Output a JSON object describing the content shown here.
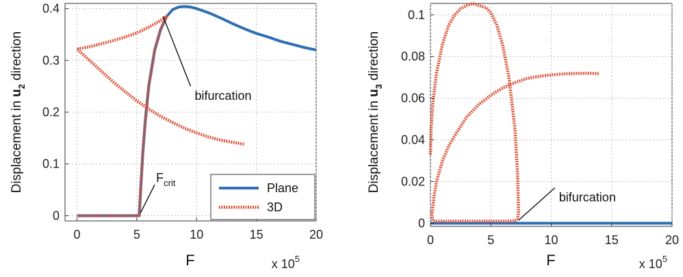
{
  "chart_data": [
    {
      "type": "line",
      "xlabel": "F",
      "x_multiplier": "x 10",
      "x_multiplier_exp": "5",
      "ylabel": "Displacement in  ",
      "ylabel_var": "u",
      "ylabel_sub": "2",
      "ylabel_tail": " direction",
      "xlim": [
        -1,
        20
      ],
      "ylim": [
        -0.01,
        0.41
      ],
      "xticks": [
        0,
        5,
        10,
        15,
        20
      ],
      "yticks": [
        0,
        0.1,
        0.2,
        0.3,
        0.4
      ],
      "ytick_labels": [
        "0",
        "0.1",
        "0.2",
        "0.3",
        "0.4"
      ],
      "grid": true,
      "legend": {
        "placement": "bottom-right",
        "entries": [
          "Plane",
          "3D"
        ]
      },
      "annotations": [
        {
          "text": "bifurcation",
          "from": [
            7.2,
            0.385
          ],
          "to": [
            9.5,
            0.25
          ]
        },
        {
          "text": "F",
          "sub": "crit",
          "from": [
            5.3,
            0.005
          ],
          "to": [
            6.5,
            0.06
          ]
        }
      ],
      "colors": {
        "Plane": "#2e6fb2",
        "3D": "#d9543a"
      },
      "series": [
        {
          "name": "Plane",
          "style": "solid",
          "x": [
            0,
            5.2,
            5.3,
            5.5,
            5.7,
            6.0,
            6.5,
            7.0,
            7.5,
            8.0,
            8.5,
            9.0,
            9.5,
            10,
            11,
            12,
            13,
            14,
            15,
            16,
            17,
            18,
            19,
            20
          ],
          "y": [
            0,
            0,
            0.04,
            0.12,
            0.18,
            0.25,
            0.32,
            0.36,
            0.385,
            0.398,
            0.403,
            0.404,
            0.403,
            0.4,
            0.392,
            0.382,
            0.371,
            0.361,
            0.352,
            0.345,
            0.337,
            0.331,
            0.325,
            0.32
          ]
        },
        {
          "name": "3D",
          "style": "dotted",
          "x": [
            0,
            5.2,
            5.3,
            5.5,
            5.7,
            6.0,
            6.5,
            7.0,
            7.5,
            7.0,
            6.0,
            5.0,
            4.0,
            3.0,
            2.0,
            1.0,
            0,
            1,
            2,
            3,
            4,
            5,
            6,
            7,
            8,
            9,
            10,
            11,
            12,
            13,
            14
          ],
          "y": [
            0,
            0,
            0.04,
            0.12,
            0.18,
            0.25,
            0.32,
            0.36,
            0.385,
            0.377,
            0.364,
            0.353,
            0.345,
            0.338,
            0.332,
            0.326,
            0.322,
            0.301,
            0.28,
            0.259,
            0.24,
            0.222,
            0.206,
            0.192,
            0.18,
            0.169,
            0.16,
            0.152,
            0.146,
            0.142,
            0.138
          ]
        }
      ]
    },
    {
      "type": "line",
      "xlabel": "F",
      "x_multiplier": "x 10",
      "x_multiplier_exp": "5",
      "ylabel": "Displacement in  ",
      "ylabel_var": "u",
      "ylabel_sub": "3",
      "ylabel_tail": " direction",
      "xlim": [
        0,
        20
      ],
      "ylim": [
        -0.0015,
        0.1055
      ],
      "xticks": [
        0,
        5,
        10,
        15,
        20
      ],
      "yticks": [
        0,
        0.02,
        0.04,
        0.06,
        0.08,
        0.1
      ],
      "ytick_labels": [
        "0",
        "0.02",
        "0.04",
        "0.06",
        "0.08",
        "0.1"
      ],
      "grid": true,
      "annotations": [
        {
          "text": "bifurcation",
          "from": [
            7.3,
            0.0015
          ],
          "to": [
            10.3,
            0.017
          ]
        }
      ],
      "colors": {
        "Plane": "#2e6fb2",
        "3D": "#d9543a"
      },
      "series": [
        {
          "name": "Plane",
          "style": "solid",
          "x": [
            0,
            20
          ],
          "y": [
            0,
            0
          ]
        },
        {
          "name": "3D",
          "style": "dotted",
          "segments": [
            {
              "x": [
                0,
                0.05,
                0.2,
                0.5,
                1.0,
                1.5,
                2.0,
                2.5,
                3.0,
                3.5,
                4.0,
                4.3,
                4.6,
                5.0,
                5.5,
                6.0,
                6.5,
                7.0,
                7.2,
                7.3,
                7.2,
                7.0,
                6.5,
                6.0,
                5.0,
                4.0,
                3.0,
                2.0,
                1.0,
                0.5,
                0.3,
                0.2,
                0.15,
                0.1
              ],
              "y": [
                0.033,
                0.045,
                0.058,
                0.072,
                0.086,
                0.095,
                0.1,
                0.103,
                0.1045,
                0.1055,
                0.1045,
                0.104,
                0.1035,
                0.101,
                0.095,
                0.085,
                0.07,
                0.045,
                0.025,
                0.005,
                0.002,
                0.0012,
                0.001,
                0.001,
                0.001,
                0.001,
                0.001,
                0.001,
                0.001,
                0.001,
                0.001,
                0.0012,
                0.002,
                0.005
              ]
            },
            {
              "x": [
                0.15,
                0.3,
                0.5,
                1.0,
                1.5,
                2.0,
                3.0,
                4.0,
                5.0,
                6.0,
                7.0,
                8.0,
                9.0,
                10,
                11,
                12,
                13,
                14
              ],
              "y": [
                0.005,
                0.013,
                0.02,
                0.03,
                0.037,
                0.042,
                0.051,
                0.057,
                0.0615,
                0.065,
                0.0675,
                0.0695,
                0.0705,
                0.0712,
                0.0717,
                0.0719,
                0.072,
                0.0718
              ]
            }
          ]
        }
      ]
    }
  ]
}
